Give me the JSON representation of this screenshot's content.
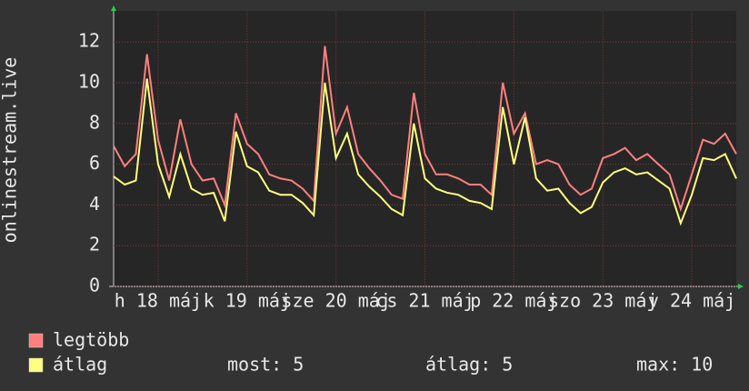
{
  "chart_data": {
    "type": "line",
    "y_label": "onlinestream.live",
    "x": [
      0,
      3,
      6,
      9,
      12,
      15,
      18,
      21,
      24,
      27,
      30,
      33,
      36,
      39,
      42,
      45,
      48,
      51,
      54,
      57,
      60,
      63,
      66,
      69,
      72,
      75,
      78,
      81,
      84,
      87,
      90,
      93,
      96,
      99,
      102,
      105,
      108,
      111,
      114,
      117,
      120,
      123,
      126,
      129,
      132,
      135,
      138,
      141,
      144,
      147,
      150,
      153,
      156,
      159,
      162,
      165,
      168
    ],
    "series": [
      {
        "name": "legtöbb",
        "color": "#ff7f7f",
        "values": [
          6.9,
          5.9,
          6.5,
          11.4,
          7.2,
          5.2,
          8.2,
          6.0,
          5.2,
          5.3,
          4.0,
          8.5,
          7.0,
          6.5,
          5.5,
          5.3,
          5.2,
          4.8,
          4.2,
          11.8,
          7.5,
          8.8,
          6.5,
          5.8,
          5.2,
          4.5,
          4.3,
          9.5,
          6.5,
          5.5,
          5.5,
          5.3,
          5.0,
          5.0,
          4.5,
          10.0,
          7.5,
          8.5,
          6.0,
          6.2,
          6.0,
          5.0,
          4.5,
          4.8,
          6.3,
          6.5,
          6.8,
          6.2,
          6.5,
          6.0,
          5.5,
          3.8,
          5.5,
          7.2,
          7.0,
          7.5,
          6.5
        ]
      },
      {
        "name": "átlag",
        "color": "#ffff7f",
        "values": [
          5.4,
          5.0,
          5.2,
          10.2,
          6.0,
          4.4,
          6.5,
          4.8,
          4.5,
          4.6,
          3.2,
          7.6,
          5.9,
          5.6,
          4.7,
          4.5,
          4.5,
          4.1,
          3.5,
          10.0,
          6.3,
          7.5,
          5.5,
          4.9,
          4.4,
          3.8,
          3.5,
          8.0,
          5.3,
          4.8,
          4.6,
          4.5,
          4.2,
          4.1,
          3.8,
          8.8,
          6.0,
          8.3,
          5.3,
          4.7,
          4.8,
          4.1,
          3.6,
          3.9,
          5.1,
          5.6,
          5.8,
          5.5,
          5.6,
          5.2,
          4.8,
          3.1,
          4.5,
          6.3,
          6.2,
          6.5,
          5.3
        ]
      }
    ],
    "xlim": [
      0,
      168
    ],
    "xticks": [
      {
        "value": 12,
        "label": "h 18 máj"
      },
      {
        "value": 36,
        "label": "k 19 máj"
      },
      {
        "value": 60,
        "label": "sze 20 máj"
      },
      {
        "value": 84,
        "label": "cs 21 máj"
      },
      {
        "value": 108,
        "label": "p 22 máj"
      },
      {
        "value": 132,
        "label": "szo 23 máj"
      },
      {
        "value": 156,
        "label": "v 24 máj"
      }
    ],
    "ylim": [
      0,
      13.5
    ],
    "yticks": [
      0,
      2,
      4,
      6,
      8,
      10,
      12
    ],
    "grid": true,
    "summary": [
      {
        "label": "most:",
        "value": 5
      },
      {
        "label": "átlag:",
        "value": 5
      },
      {
        "label": "max:",
        "value": 10
      }
    ]
  }
}
